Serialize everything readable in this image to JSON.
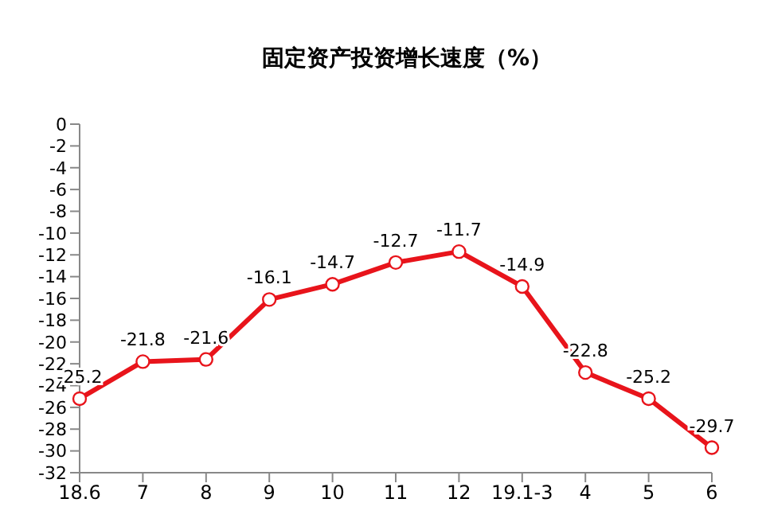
{
  "chart_data": {
    "type": "line",
    "title": "固定资产投资增长速度（%）",
    "categories": [
      "18.6",
      "7",
      "8",
      "9",
      "10",
      "11",
      "12",
      "19.1-3",
      "4",
      "5",
      "6"
    ],
    "series": [
      {
        "color": "#e8141b",
        "values": [
          -25.2,
          -21.8,
          -21.6,
          -16.1,
          -14.7,
          -12.7,
          -11.7,
          -14.9,
          -22.8,
          -25.2,
          -29.7
        ]
      }
    ],
    "ylim": [
      -32,
      0
    ],
    "yticks": [
      0,
      -2,
      -4,
      -6,
      -8,
      -10,
      -12,
      -14,
      -16,
      -18,
      -20,
      -22,
      -24,
      -26,
      -28,
      -30,
      -32
    ],
    "grid": false,
    "legend": false,
    "marker": "circle",
    "line_style": "solid",
    "data_labels": true
  }
}
